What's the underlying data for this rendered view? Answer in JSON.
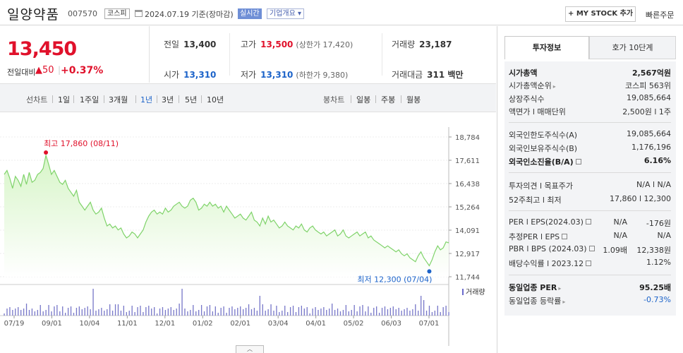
{
  "header": {
    "title": "일양약품",
    "code": "007570",
    "market": "코스피",
    "as_of": "2024.07.19  기준(장마감)",
    "realtime": "실시간",
    "corp_info": "기업개요 ▾",
    "mystock": "+ MY STOCK 추가",
    "quick_order": "빠른주문"
  },
  "price": {
    "current": "13,450",
    "change_label": "전일대비",
    "change": "▲50",
    "change_pct": "+0.37%"
  },
  "stats": {
    "prev_label": "전일",
    "prev": "13,400",
    "high_label": "고가",
    "high": "13,500",
    "upper_limit": "(상한가 17,420)",
    "volume_label": "거래량",
    "volume": "23,187",
    "open_label": "시가",
    "open": "13,310",
    "low_label": "저가",
    "low": "13,310",
    "lower_limit": "(하한가 9,380)",
    "value_label": "거래대금",
    "value": "311 백만"
  },
  "periods": {
    "line_label": "선차트",
    "items": [
      "1일",
      "1주일",
      "3개월",
      "1년",
      "3년",
      "5년",
      "10년"
    ],
    "active": "1년",
    "candle_label": "봉차트",
    "candle_items": [
      "일봉",
      "주봉",
      "월봉"
    ]
  },
  "chart_data": {
    "type": "area",
    "y_ticks": [
      "18,784",
      "17,611",
      "16,438",
      "15,264",
      "14,091",
      "12,917",
      "11,744"
    ],
    "ylim": [
      11744,
      18784
    ],
    "x_ticks": [
      "07/19",
      "09/01",
      "10/04",
      "11/01",
      "12/01",
      "01/02",
      "02/01",
      "03/04",
      "04/01",
      "05/02",
      "06/03",
      "07/01"
    ],
    "high_annotation": "최고 17,860 (08/11)",
    "low_annotation": "최저 12,300 (07/04)",
    "volume_label": "거래량",
    "colors": {
      "line": "#7fd36a",
      "fill_top": "#d7f5c8",
      "fill_bottom": "#ffffff",
      "high": "#e0112b",
      "low": "#1c63c9"
    },
    "values": [
      16900,
      17100,
      16700,
      16200,
      16800,
      16600,
      16300,
      16900,
      16400,
      17000,
      16500,
      16600,
      16900,
      17000,
      17200,
      17860,
      17400,
      16900,
      17100,
      16800,
      16500,
      16400,
      16600,
      16200,
      16000,
      15800,
      16100,
      15500,
      15300,
      15100,
      15300,
      15500,
      15100,
      14900,
      15000,
      15200,
      14700,
      14300,
      14400,
      14200,
      14300,
      14100,
      14200,
      13900,
      13700,
      13800,
      14000,
      13900,
      13700,
      13900,
      14100,
      14500,
      14800,
      15000,
      15100,
      14900,
      15000,
      14900,
      15200,
      15000,
      15100,
      15300,
      15400,
      15500,
      15300,
      15200,
      15300,
      15600,
      15700,
      15500,
      15100,
      15200,
      15400,
      15300,
      15500,
      15300,
      15400,
      15200,
      15300,
      15000,
      15300,
      15100,
      14900,
      14700,
      14800,
      14900,
      14700,
      14600,
      14800,
      15000,
      14600,
      14500,
      14300,
      14700,
      14400,
      14800,
      14500,
      14600,
      14400,
      14200,
      14300,
      14500,
      14300,
      14200,
      14100,
      14300,
      14200,
      14400,
      14100,
      14000,
      14200,
      14300,
      14100,
      14000,
      13900,
      14000,
      13800,
      13900,
      14000,
      14100,
      13800,
      13900,
      14100,
      13800,
      13700,
      13800,
      13900,
      14000,
      13800,
      13900,
      14000,
      13700,
      13800,
      13600,
      13500,
      13400,
      13300,
      13200,
      13300,
      13200,
      13100,
      13000,
      13100,
      12900,
      12800,
      12900,
      12700,
      12600,
      12500,
      12800,
      13000,
      12700,
      12500,
      12300,
      12600,
      13000,
      13300,
      13100,
      13200,
      13500,
      13450
    ]
  },
  "panel": {
    "tab_info": "투자정보",
    "tab_hoga": "호가 10단계",
    "market_cap_label": "시가총액",
    "market_cap": "2,567억원",
    "cap_rank_label": "시가총액순위",
    "cap_rank": "코스피 563위",
    "shares_label": "상장주식수",
    "shares": "19,085,664",
    "par_label": "액면가 l 매매단위",
    "par": "2,500원 l 1주",
    "foreign_limit_label": "외국인한도주식수(A)",
    "foreign_limit": "19,085,664",
    "foreign_hold_label": "외국인보유주식수(B)",
    "foreign_hold": "1,176,196",
    "foreign_rate_label": "외국인소진율(B/A)",
    "foreign_rate": "6.16%",
    "opinion_label": "투자의견 l 목표주가",
    "opinion": "N/A l N/A",
    "w52_label": "52주최고 l 최저",
    "w52": "17,860 l 12,300",
    "per_label": "PER l EPS(2024.03)",
    "per": "N/A",
    "eps": "-176원",
    "est_per_label": "추정PER l EPS",
    "est_per": "N/A",
    "est_eps": "N/A",
    "pbr_label": "PBR l BPS (2024.03)",
    "pbr": "1.09배",
    "bps": "12,338원",
    "div_label": "배당수익률 l 2023.12",
    "div": "1.12%",
    "sector_per_label": "동일업종 PER",
    "sector_per": "95.25배",
    "sector_change_label": "동일업종 등락률",
    "sector_change": "-0.73%"
  }
}
